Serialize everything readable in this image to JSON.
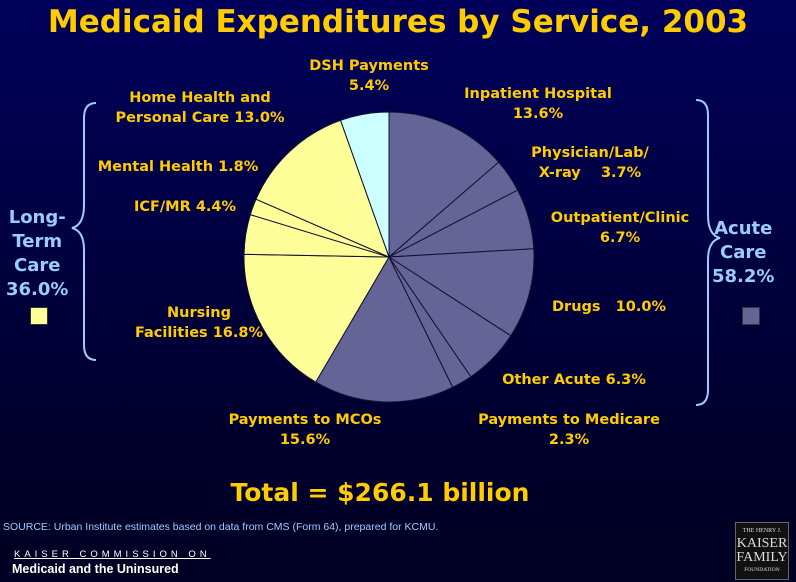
{
  "chart_data": {
    "type": "pie",
    "title": "Medicaid Expenditures by Service, 2003",
    "slices": [
      {
        "label": "Inpatient Hospital",
        "value": 13.6,
        "group": "acute"
      },
      {
        "label": "Physician/Lab/ X-ray",
        "value": 3.7,
        "group": "acute"
      },
      {
        "label": "Outpatient/Clinic",
        "value": 6.7,
        "group": "acute"
      },
      {
        "label": "Drugs",
        "value": 10.0,
        "group": "acute"
      },
      {
        "label": "Other Acute",
        "value": 6.3,
        "group": "acute"
      },
      {
        "label": "Payments to Medicare",
        "value": 2.3,
        "group": "acute"
      },
      {
        "label": "Payments to MCOs",
        "value": 15.6,
        "group": "acute"
      },
      {
        "label": "Nursing Facilities",
        "value": 16.8,
        "group": "ltc"
      },
      {
        "label": "ICF/MR",
        "value": 4.4,
        "group": "ltc"
      },
      {
        "label": "Mental Health",
        "value": 1.8,
        "group": "ltc"
      },
      {
        "label": "Home Health and Personal Care",
        "value": 13.0,
        "group": "ltc"
      },
      {
        "label": "DSH Payments",
        "value": 5.4,
        "group": "dsh"
      }
    ],
    "slice_labels": [
      "Inpatient Hospital\n13.6%",
      "Physician/Lab/\nX-ray    3.7%",
      "Outpatient/Clinic\n6.7%",
      "Drugs   10.0%",
      "Other Acute 6.3%",
      "Payments to Medicare\n2.3%",
      "Payments to MCOs\n15.6%",
      "Nursing\nFacilities 16.8%",
      "ICF/MR 4.4%",
      "Mental Health 1.8%",
      "Home Health and\nPersonal Care 13.0%",
      "DSH Payments\n5.4%"
    ],
    "colors": {
      "acute": "#646496",
      "ltc": "#ffff99",
      "dsh": "#ccffff"
    },
    "groups": {
      "acute": "Acute\nCare\n58.2%",
      "ltc": "Long-\nTerm\nCare\n36.0%"
    },
    "total": "Total = $266.1 billion"
  },
  "source": "SOURCE: Urban Institute estimates based on data from CMS (Form 64), prepared for KCMU.",
  "footer": {
    "line1": "KAISER COMMISSION ON",
    "line2": "Medicaid and the Uninsured"
  },
  "logo": "THE HENRY J. KAISER FAMILY FOUNDATION"
}
